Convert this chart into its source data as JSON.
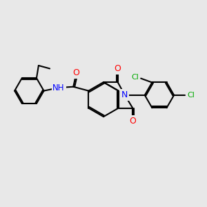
{
  "background_color": "#e8e8e8",
  "bond_color": "#000000",
  "bond_width": 1.5,
  "atom_colors": {
    "O": "#ff0000",
    "N": "#0000ff",
    "Cl": "#00aa00",
    "C": "#000000",
    "H": "#000000"
  }
}
